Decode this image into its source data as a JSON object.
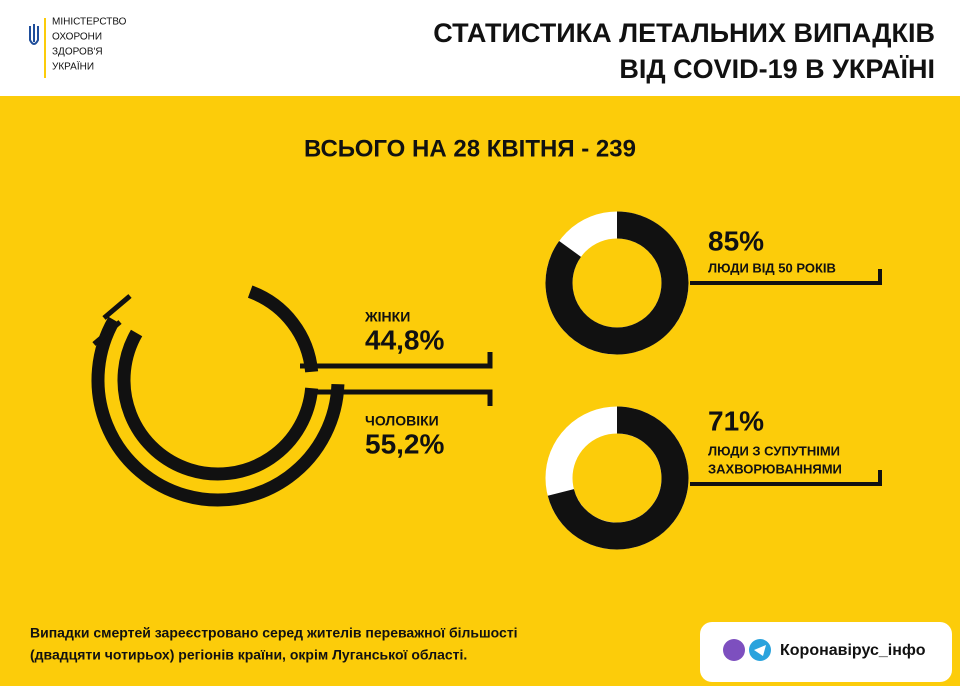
{
  "header": {
    "ministry": [
      "МІНІСТЕРСТВО",
      "ОХОРОНИ",
      "ЗДОРОВ'Я",
      "УКРАЇНИ"
    ],
    "title": [
      "СТАТИСТИКА ЛЕТАЛЬНИХ ВИПАДКІВ",
      "ВІД COVID-19 В УКРАЇНІ"
    ]
  },
  "total": "ВСЬОГО НА 28 КВІТНЯ - 239",
  "gender": {
    "categories": [
      "ЖІНКИ",
      "ЧОЛОВІКИ"
    ],
    "values": [
      44.8,
      55.2
    ],
    "value_labels": [
      "44,8%",
      "55,2%"
    ]
  },
  "donuts": [
    {
      "value": 85,
      "value_label": "85%",
      "label": [
        "ЛЮДИ ВІД 50 РОКІВ"
      ]
    },
    {
      "value": 71,
      "value_label": "71%",
      "label": [
        "ЛЮДИ З СУПУТНІМИ",
        "ЗАХВОРЮВАННЯМИ"
      ]
    }
  ],
  "footer": {
    "note": [
      "Випадки смертей зареєстровано серед жителів переважної більшості",
      "(двадцяти чотирьох) регіонів країни, окрім Луганської області."
    ],
    "channel": "Коронавірус_інфо"
  }
}
